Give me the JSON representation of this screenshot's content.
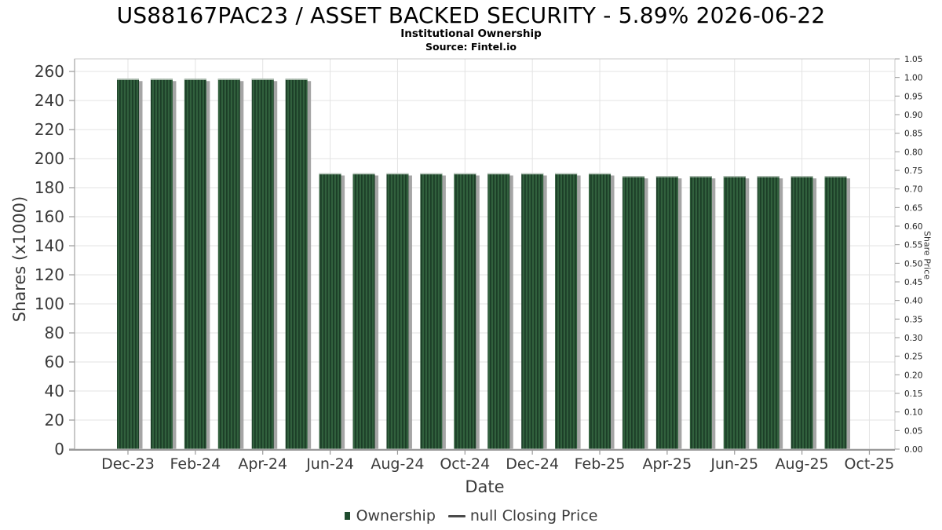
{
  "header": {
    "title": "US88167PAC23 / ASSET BACKED SECURITY - 5.89% 2026-06-22",
    "subtitle": "Institutional Ownership",
    "source": "Source: Fintel.io"
  },
  "axes": {
    "x_label": "Date",
    "y_left_label": "Shares (x1000)",
    "y_right_label": "Share Price"
  },
  "legend": {
    "items": [
      {
        "label": "Ownership",
        "marker": "square"
      },
      {
        "label": "null Closing Price",
        "marker": "line"
      }
    ],
    "position": "bottom-center"
  },
  "colors": {
    "bar": "#31603d",
    "bar_stripe": "#1c3e27",
    "bar_highlight": "#b7c4ba",
    "shadow": "#9b9b9b",
    "grid": "#e3e3e3",
    "axis": "#999999",
    "border": "#c8c8c8",
    "tick_text": "#3a3a3a",
    "right_tick_text": "#222222",
    "legend_marker": "#1f4c2e",
    "legend_line": "#4a4a4a"
  },
  "chart_data": {
    "type": "bar",
    "title": "US88167PAC23 / ASSET BACKED SECURITY - 5.89% 2026-06-22",
    "subtitle": "Institutional Ownership",
    "source": "Source: Fintel.io",
    "xlabel": "Date",
    "ylabel_left": "Shares (x1000)",
    "ylabel_right": "Share Price",
    "grid": true,
    "legend_position": "bottom",
    "categories": [
      "Dec-23",
      "Jan-24",
      "Feb-24",
      "Mar-24",
      "Apr-24",
      "May-24",
      "Jun-24",
      "Jul-24",
      "Aug-24",
      "Sep-24",
      "Oct-24",
      "Nov-24",
      "Dec-24",
      "Jan-25",
      "Feb-25",
      "Mar-25",
      "Apr-25",
      "May-25",
      "Jun-25",
      "Jul-25",
      "Aug-25",
      "Sep-25"
    ],
    "series": [
      {
        "name": "Ownership",
        "values": [
          255,
          255,
          255,
          255,
          255,
          255,
          190,
          190,
          190,
          190,
          190,
          190,
          190,
          190,
          190,
          188,
          188,
          188,
          188,
          188,
          188,
          188
        ]
      },
      {
        "name": "null Closing Price",
        "values": []
      }
    ],
    "x_tick_labels": [
      "Dec-23",
      "Feb-24",
      "Apr-24",
      "Jun-24",
      "Aug-24",
      "Oct-24",
      "Dec-24",
      "Feb-25",
      "Apr-25",
      "Jun-25",
      "Aug-25",
      "Oct-25"
    ],
    "x_tick_indices": [
      0,
      2,
      4,
      6,
      8,
      10,
      12,
      14,
      16,
      18,
      20,
      22
    ],
    "y_left": {
      "min": 0,
      "max": 260,
      "step": 20
    },
    "y_right": {
      "min": 0.0,
      "max": 1.05,
      "step": 0.05
    }
  }
}
